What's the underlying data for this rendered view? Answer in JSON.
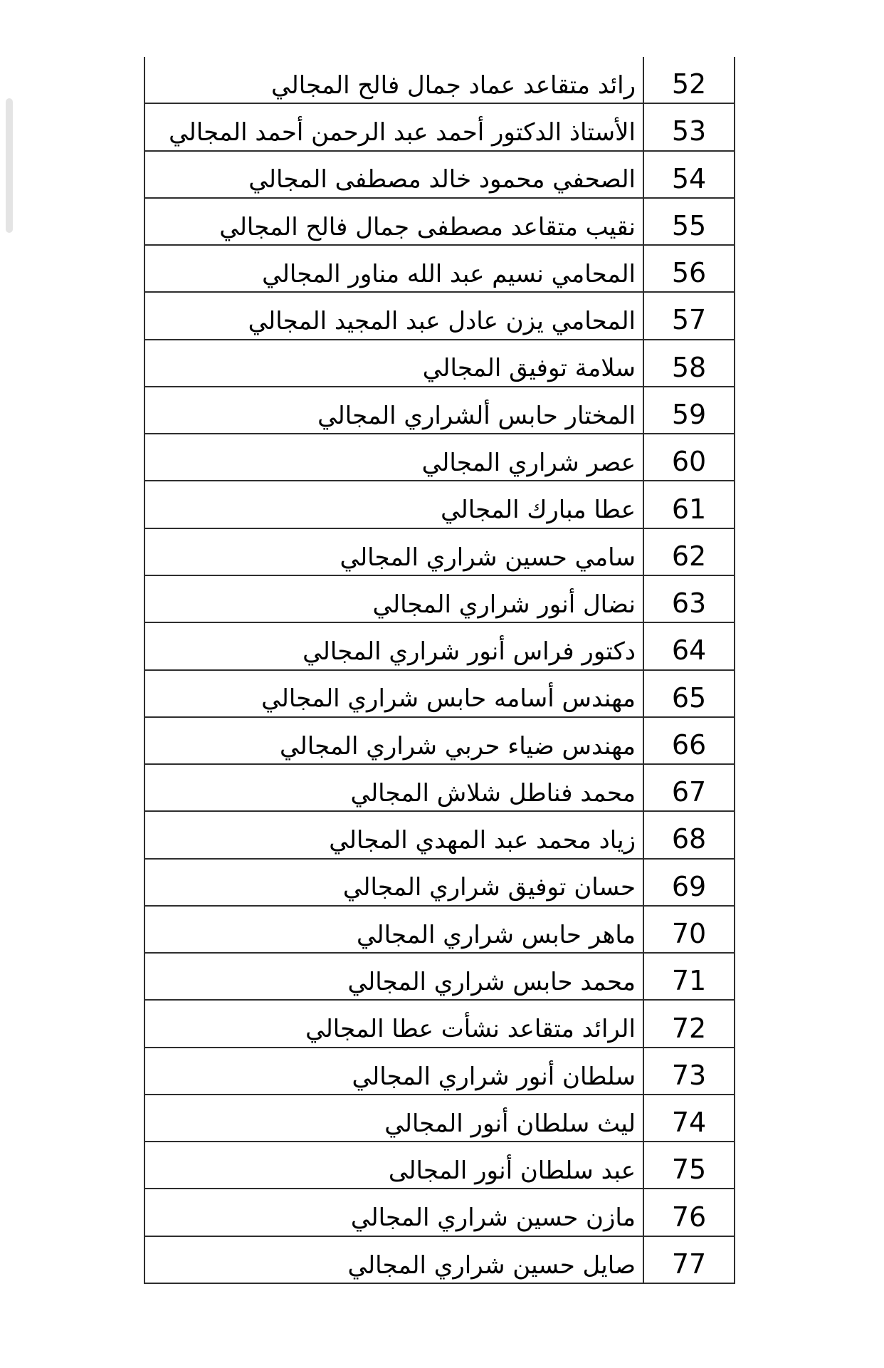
{
  "page": {
    "background_color": "#ffffff"
  },
  "scrollbar": {
    "color": "#e4e4e4"
  },
  "table": {
    "border_color": "#2e2e2e",
    "text_color": "#000000",
    "rows": [
      {
        "number": "52",
        "name": "رائد متقاعد عماد جمال فالح المجالي"
      },
      {
        "number": "53",
        "name": "الأستاذ الدكتور أحمد عبد الرحمن أحمد المجالي"
      },
      {
        "number": "54",
        "name": "الصحفي محمود خالد مصطفى المجالي"
      },
      {
        "number": "55",
        "name": "نقيب متقاعد مصطفى جمال فالح المجالي"
      },
      {
        "number": "56",
        "name": "المحامي نسيم عبد الله مناور المجالي"
      },
      {
        "number": "57",
        "name": "المحامي يزن عادل عبد المجيد المجالي"
      },
      {
        "number": "58",
        "name": "سلامة توفيق المجالي"
      },
      {
        "number": "59",
        "name": "المختار حابس ألشراري المجالي"
      },
      {
        "number": "60",
        "name": "عصر شراري المجالي"
      },
      {
        "number": "61",
        "name": "عطا مبارك المجالي"
      },
      {
        "number": "62",
        "name": "سامي حسين شراري المجالي"
      },
      {
        "number": "63",
        "name": "نضال أنور شراري المجالي"
      },
      {
        "number": "64",
        "name": "دكتور فراس أنور شراري المجالي"
      },
      {
        "number": "65",
        "name": "مهندس أسامه حابس شراري المجالي"
      },
      {
        "number": "66",
        "name": "مهندس ضياء حربي شراري المجالي"
      },
      {
        "number": "67",
        "name": "محمد فناطل شلاش المجالي"
      },
      {
        "number": "68",
        "name": "زياد محمد عبد المهدي المجالي"
      },
      {
        "number": "69",
        "name": "حسان توفيق شراري المجالي"
      },
      {
        "number": "70",
        "name": "ماهر حابس شراري المجالي"
      },
      {
        "number": "71",
        "name": "محمد حابس شراري المجالي"
      },
      {
        "number": "72",
        "name": "الرائد متقاعد نشأت عطا المجالي"
      },
      {
        "number": "73",
        "name": "سلطان أنور شراري المجالي"
      },
      {
        "number": "74",
        "name": "ليث سلطان أنور المجالي"
      },
      {
        "number": "75",
        "name": "عبد سلطان أنور المجالى"
      },
      {
        "number": "76",
        "name": "مازن حسين شراري المجالي"
      },
      {
        "number": "77",
        "name": "صايل حسين شراري المجالي"
      }
    ]
  }
}
